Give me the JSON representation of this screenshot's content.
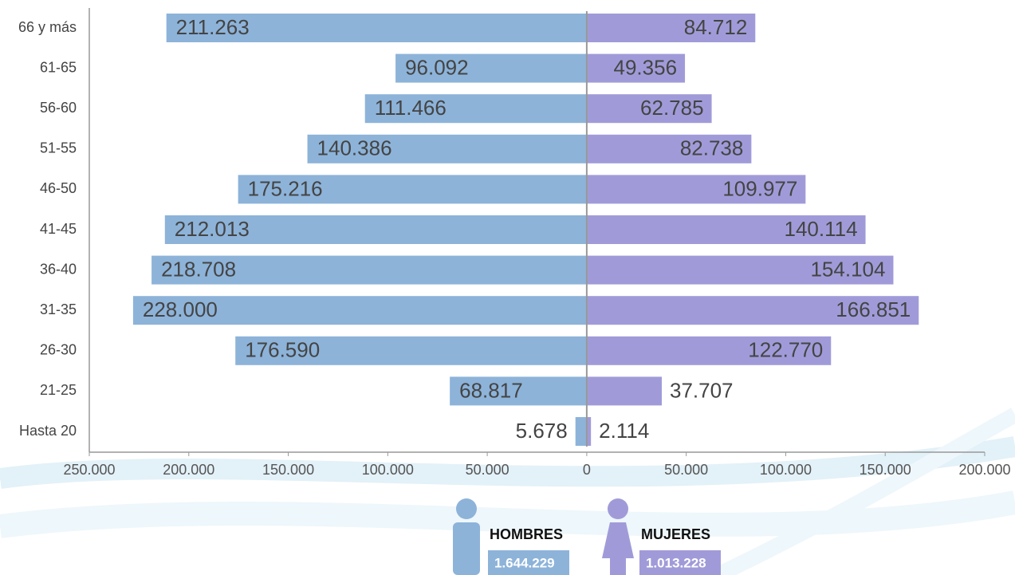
{
  "chart_data": {
    "type": "pyramid",
    "categories": [
      "66 y más",
      "61-65",
      "56-60",
      "51-55",
      "46-50",
      "41-45",
      "36-40",
      "31-35",
      "26-30",
      "21-25",
      "Hasta 20"
    ],
    "series": [
      {
        "name": "HOMBRES",
        "color": "#8db3d9",
        "side": "left",
        "values": [
          211263,
          96092,
          111466,
          140386,
          175216,
          212013,
          218708,
          228000,
          176590,
          68817,
          5678
        ],
        "value_labels": [
          "211.263",
          "96.092",
          "111.466",
          "140.386",
          "175.216",
          "212.013",
          "218.708",
          "228.000",
          "176.590",
          "68.817",
          "5.678"
        ],
        "total": {
          "value": 1644229,
          "label": "1.644.229"
        }
      },
      {
        "name": "MUJERES",
        "color": "#a09bd8",
        "side": "right",
        "values": [
          84712,
          49356,
          62785,
          82738,
          109977,
          140114,
          154104,
          166851,
          122770,
          37707,
          2114
        ],
        "value_labels": [
          "84.712",
          "49.356",
          "62.785",
          "82.738",
          "109.977",
          "140.114",
          "154.104",
          "166.851",
          "122.770",
          "37.707",
          "2.114"
        ],
        "total": {
          "value": 1013228,
          "label": "1.013.228"
        }
      }
    ],
    "xlim": [
      -250000,
      200000
    ],
    "xticks": [
      {
        "value": -250000,
        "label": "250.000"
      },
      {
        "value": -200000,
        "label": "200.000"
      },
      {
        "value": -150000,
        "label": "150.000"
      },
      {
        "value": -100000,
        "label": "100.000"
      },
      {
        "value": -50000,
        "label": "50.000"
      },
      0,
      {
        "value": 50000,
        "label": "50.000"
      },
      {
        "value": 100000,
        "label": "100.000"
      },
      {
        "value": 150000,
        "label": "150.000"
      },
      {
        "value": 200000,
        "label": "200.000"
      }
    ]
  }
}
